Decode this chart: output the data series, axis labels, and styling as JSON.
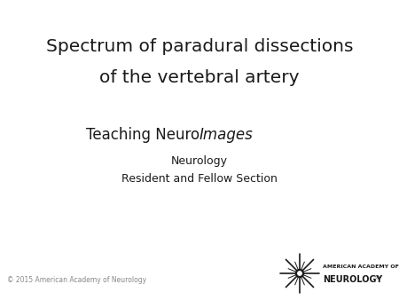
{
  "title_line1": "Spectrum of paradural dissections",
  "title_line2": "of the vertebral artery",
  "subtitle_normal": "Teaching Neuro",
  "subtitle_italic": "Images",
  "line3": "Neurology",
  "line4": "Resident and Fellow Section",
  "copyright": "© 2015 American Academy of Neurology",
  "bg_color": "#ffffff",
  "text_color": "#1a1a1a",
  "title_fontsize": 14.5,
  "subtitle_fontsize": 12,
  "body_fontsize": 9,
  "small_fontsize": 5.5,
  "logo_text1_fontsize": 4.5,
  "logo_text2_fontsize": 7,
  "logo_reg_fontsize": 4
}
